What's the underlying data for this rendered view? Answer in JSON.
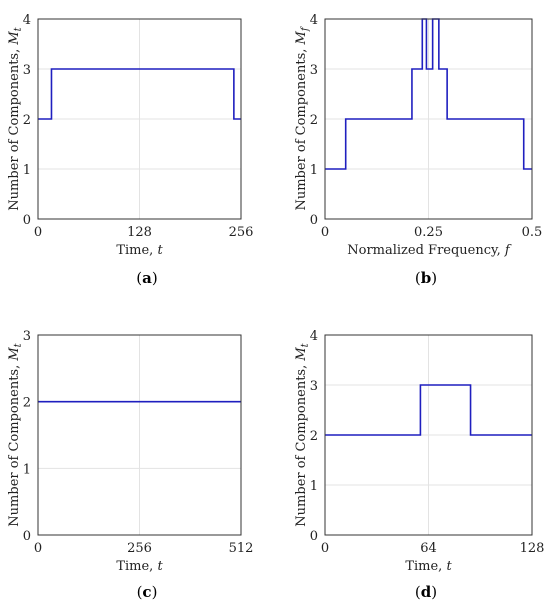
{
  "chart_data": [
    {
      "id": "a",
      "type": "line",
      "caption": "a",
      "xlabel": "Time,",
      "xlabel_var": "t",
      "ylabel": "Number of Components,",
      "ylabel_var": "M",
      "ylabel_sub": "t",
      "xlim": [
        0,
        256
      ],
      "ylim": [
        0,
        4
      ],
      "xticks": [
        0,
        128,
        256
      ],
      "xtick_labels": [
        "0",
        "128",
        "256"
      ],
      "yticks": [
        0,
        1,
        2,
        3,
        4
      ],
      "ytick_labels": [
        "0",
        "1",
        "2",
        "3",
        "4"
      ],
      "grid": true,
      "series": [
        {
          "color": "#1f1fbf",
          "x": [
            0,
            17,
            17,
            247,
            247,
            256
          ],
          "y": [
            2,
            2,
            3,
            3,
            2,
            2
          ]
        }
      ]
    },
    {
      "id": "b",
      "type": "line",
      "caption": "b",
      "xlabel": "Normalized Frequency,",
      "xlabel_var": "f",
      "ylabel": "Number of Components,",
      "ylabel_var": "M",
      "ylabel_sub": "f",
      "xlim": [
        0,
        0.5
      ],
      "ylim": [
        0,
        4
      ],
      "xticks": [
        0,
        0.25,
        0.5
      ],
      "xtick_labels": [
        "0",
        "0.25",
        "0.5"
      ],
      "yticks": [
        0,
        1,
        2,
        3,
        4
      ],
      "ytick_labels": [
        "0",
        "1",
        "2",
        "3",
        "4"
      ],
      "grid": true,
      "series": [
        {
          "color": "#1f1fbf",
          "x": [
            0,
            0.05,
            0.05,
            0.21,
            0.21,
            0.235,
            0.235,
            0.245,
            0.245,
            0.26,
            0.26,
            0.275,
            0.275,
            0.295,
            0.295,
            0.48,
            0.48,
            0.5
          ],
          "y": [
            1,
            1,
            2,
            2,
            3,
            3,
            4,
            4,
            3,
            3,
            4,
            4,
            3,
            3,
            2,
            2,
            1,
            1
          ]
        }
      ]
    },
    {
      "id": "c",
      "type": "line",
      "caption": "c",
      "xlabel": "Time,",
      "xlabel_var": "t",
      "ylabel": "Number of Components,",
      "ylabel_var": "M",
      "ylabel_sub": "t",
      "xlim": [
        0,
        512
      ],
      "ylim": [
        0,
        3
      ],
      "xticks": [
        0,
        256,
        512
      ],
      "xtick_labels": [
        "0",
        "256",
        "512"
      ],
      "yticks": [
        0,
        1,
        2,
        3
      ],
      "ytick_labels": [
        "0",
        "1",
        "2",
        "3"
      ],
      "grid": true,
      "series": [
        {
          "color": "#1f1fbf",
          "x": [
            0,
            512
          ],
          "y": [
            2,
            2
          ]
        }
      ]
    },
    {
      "id": "d",
      "type": "line",
      "caption": "d",
      "xlabel": "Time,",
      "xlabel_var": "t",
      "ylabel": "Number of Components,",
      "ylabel_var": "M",
      "ylabel_sub": "t",
      "xlim": [
        0,
        128
      ],
      "ylim": [
        0,
        4
      ],
      "xticks": [
        0,
        64,
        128
      ],
      "xtick_labels": [
        "0",
        "64",
        "128"
      ],
      "yticks": [
        0,
        1,
        2,
        3,
        4
      ],
      "ytick_labels": [
        "0",
        "1",
        "2",
        "3",
        "4"
      ],
      "grid": true,
      "series": [
        {
          "color": "#1f1fbf",
          "x": [
            0,
            59,
            59,
            90,
            90,
            128
          ],
          "y": [
            2,
            2,
            3,
            3,
            2,
            2
          ]
        }
      ]
    }
  ]
}
